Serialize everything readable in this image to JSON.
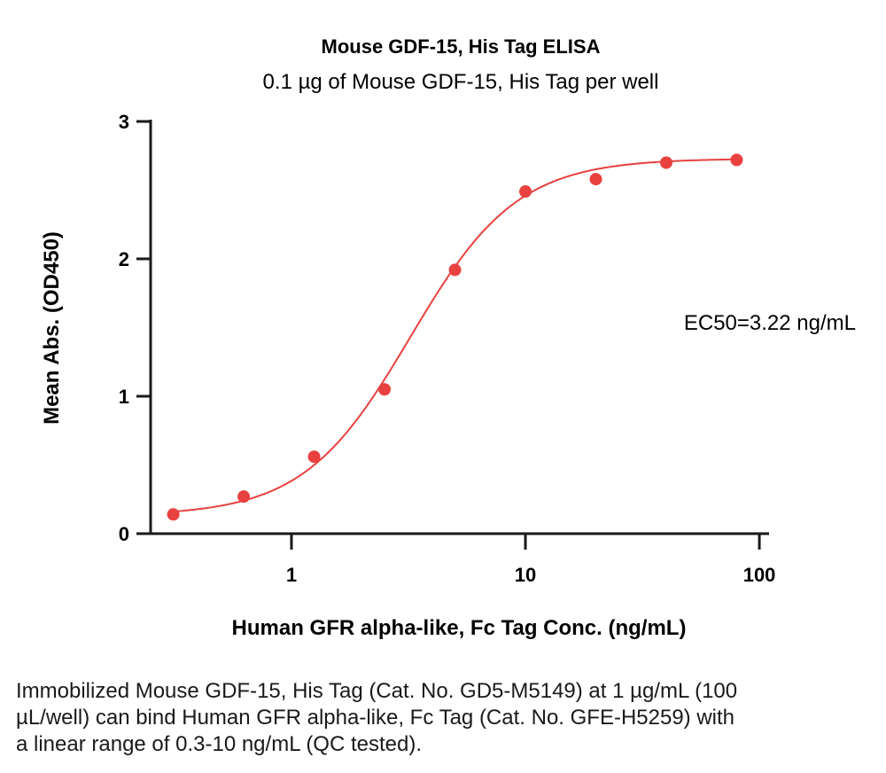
{
  "chart_data": {
    "type": "scatter",
    "title": "Mouse GDF-15, His Tag ELISA",
    "subtitle": "0.1 µg of Mouse GDF-15, His Tag per well",
    "xlabel": "Human GFR alpha-like, Fc Tag Conc. (ng/mL)",
    "ylabel": "Mean Abs. (OD450)",
    "xscale": "log",
    "xlim": [
      0.25,
      110
    ],
    "ylim": [
      0,
      3
    ],
    "x_ticks": [
      {
        "value": 1,
        "label": "1"
      },
      {
        "value": 10,
        "label": "10"
      },
      {
        "value": 100,
        "label": "100"
      }
    ],
    "y_ticks": [
      {
        "value": 0,
        "label": "0"
      },
      {
        "value": 1,
        "label": "1"
      },
      {
        "value": 2,
        "label": "2"
      },
      {
        "value": 3,
        "label": "3"
      }
    ],
    "series": [
      {
        "color": "#e8413f",
        "points": [
          {
            "x": 0.3125,
            "y": 0.14
          },
          {
            "x": 0.625,
            "y": 0.27
          },
          {
            "x": 1.25,
            "y": 0.56
          },
          {
            "x": 2.5,
            "y": 1.05
          },
          {
            "x": 5,
            "y": 1.92
          },
          {
            "x": 10,
            "y": 2.49
          },
          {
            "x": 20,
            "y": 2.58
          },
          {
            "x": 40,
            "y": 2.7
          },
          {
            "x": 80,
            "y": 2.72
          }
        ],
        "fit": {
          "model": "4PL",
          "bottom": 0.13,
          "top": 2.73,
          "ec50": 3.22,
          "hill": 1.9,
          "x_range": [
            0.3125,
            80
          ]
        }
      }
    ],
    "annotation": "EC50=3.22 ng/mL",
    "grid": false
  },
  "caption": "Immobilized Mouse GDF-15, His Tag (Cat. No. GD5-M5149) at 1 µg/mL (100 µL/well) can bind Human GFR alpha-like, Fc Tag (Cat. No. GFE-H5259) with a linear range of 0.3-10 ng/mL (QC tested)."
}
